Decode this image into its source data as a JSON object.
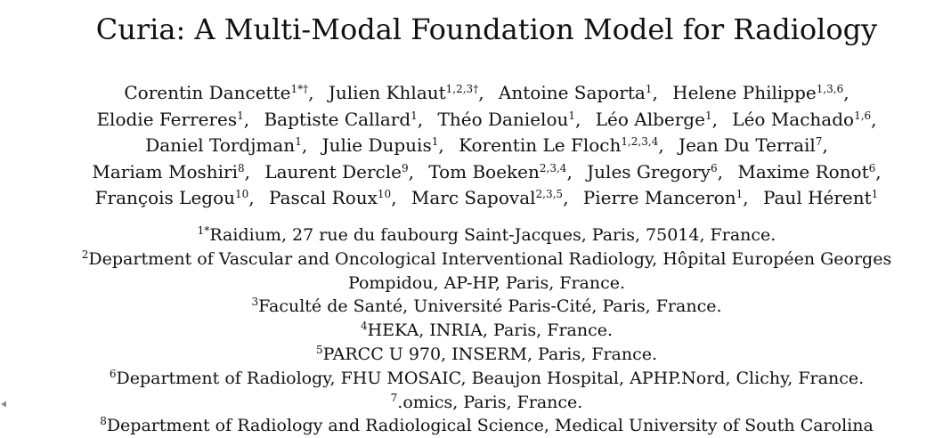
{
  "paper": {
    "title": "Curia: A Multi-Modal Foundation Model for Radiology",
    "author_lines": [
      [
        {
          "name": "Corentin Dancette",
          "sup": "1*†",
          "sep": ","
        },
        {
          "name": "Julien Khlaut",
          "sup": "1,2,3†",
          "sep": ","
        },
        {
          "name": "Antoine Saporta",
          "sup": "1",
          "sep": ","
        },
        {
          "name": "Helene Philippe",
          "sup": "1,3,6",
          "sep": ","
        }
      ],
      [
        {
          "name": "Elodie Ferreres",
          "sup": "1",
          "sep": ","
        },
        {
          "name": "Baptiste Callard",
          "sup": "1",
          "sep": ","
        },
        {
          "name": "Théo Danielou",
          "sup": "1",
          "sep": ","
        },
        {
          "name": "Léo Alberge",
          "sup": "1",
          "sep": ","
        },
        {
          "name": "Léo Machado",
          "sup": "1,6",
          "sep": ","
        }
      ],
      [
        {
          "name": "Daniel Tordjman",
          "sup": "1",
          "sep": ","
        },
        {
          "name": "Julie Dupuis",
          "sup": "1",
          "sep": ","
        },
        {
          "name": "Korentin Le Floch",
          "sup": "1,2,3,4",
          "sep": ","
        },
        {
          "name": "Jean Du Terrail",
          "sup": "7",
          "sep": ","
        }
      ],
      [
        {
          "name": "Mariam Moshiri",
          "sup": "8",
          "sep": ","
        },
        {
          "name": "Laurent Dercle",
          "sup": "9",
          "sep": ","
        },
        {
          "name": "Tom Boeken",
          "sup": "2,3,4",
          "sep": ","
        },
        {
          "name": "Jules Gregory",
          "sup": "6",
          "sep": ","
        },
        {
          "name": "Maxime Ronot",
          "sup": "6",
          "sep": ","
        }
      ],
      [
        {
          "name": "François Legou",
          "sup": "10",
          "sep": ","
        },
        {
          "name": "Pascal Roux",
          "sup": "10",
          "sep": ","
        },
        {
          "name": "Marc Sapoval",
          "sup": "2,3,5",
          "sep": ","
        },
        {
          "name": "Pierre Manceron",
          "sup": "1",
          "sep": ","
        },
        {
          "name": "Paul Hérent",
          "sup": "1",
          "sep": ""
        }
      ]
    ],
    "affiliation_lines": [
      {
        "sup": "1*",
        "text": "Raidium, 27 rue du faubourg Saint-Jacques, Paris, 75014, France."
      },
      {
        "sup": "2",
        "text": "Department of Vascular and Oncological Interventional Radiology, Hôpital Européen Georges"
      },
      {
        "sup": "",
        "text": "Pompidou, AP-HP, Paris, France."
      },
      {
        "sup": "3",
        "text": "Faculté de Santé, Université Paris-Cité, Paris, France."
      },
      {
        "sup": "4",
        "text": "HEKA, INRIA, Paris, France."
      },
      {
        "sup": "5",
        "text": "PARCC U 970, INSERM, Paris, France."
      },
      {
        "sup": "6",
        "text": "Department of Radiology, FHU MOSAIC, Beaujon Hospital, APHP.Nord, Clichy, France."
      },
      {
        "sup": "7",
        "text": ".omics, Paris, France."
      },
      {
        "sup": "8",
        "text": "Department of Radiology and Radiological Science, Medical University of South Carolina"
      }
    ]
  }
}
